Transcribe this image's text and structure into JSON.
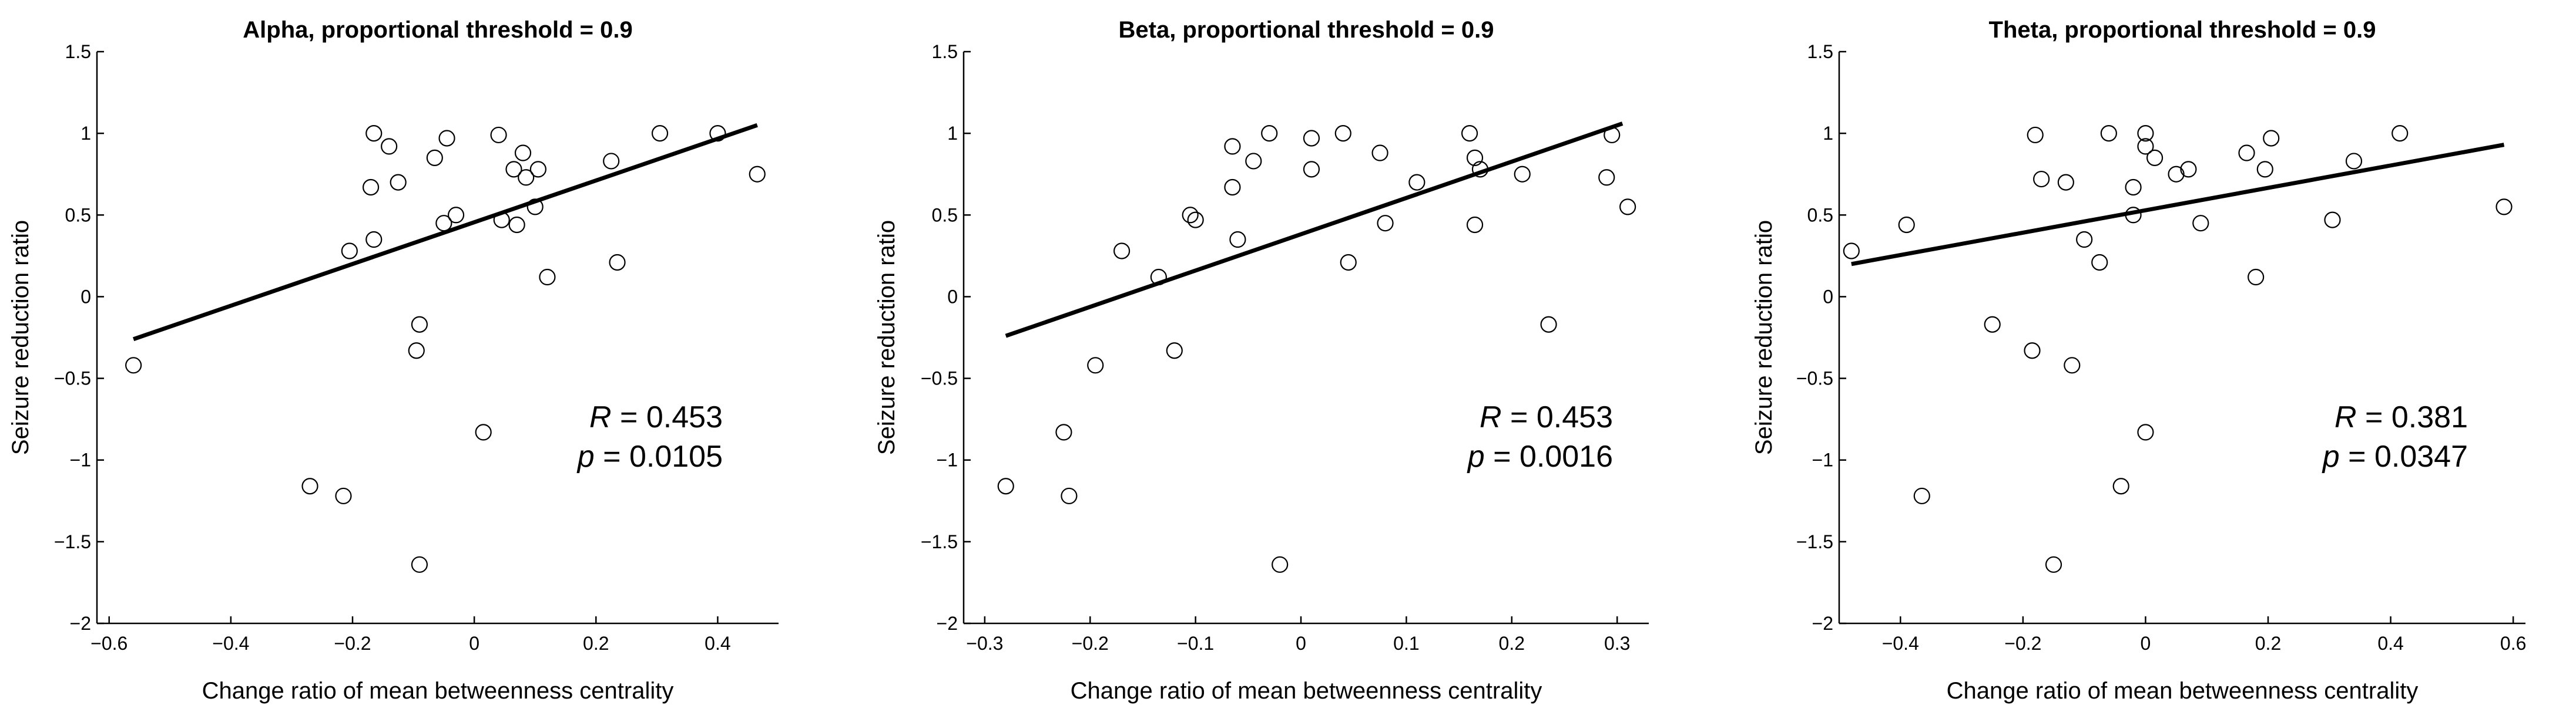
{
  "chart_data": [
    {
      "type": "scatter",
      "title": "Alpha, proportional threshold = 0.9",
      "xlabel": "Change ratio of mean betweenness centrality",
      "ylabel": "Seizure reduction ratio",
      "xlim": [
        -0.62,
        0.5
      ],
      "ylim": [
        -2,
        1.5
      ],
      "xticks": [
        -0.6,
        -0.4,
        -0.2,
        0,
        0.2,
        0.4
      ],
      "xtick_labels": [
        "−0.6",
        "−0.4",
        "−0.2",
        "0",
        "0.2",
        "0.4"
      ],
      "yticks": [
        -2,
        -1.5,
        -1,
        -0.5,
        0,
        0.5,
        1,
        1.5
      ],
      "ytick_labels": [
        "−2",
        "−1.5",
        "−1",
        "−0.5",
        "0",
        "0.5",
        "1",
        "1.5"
      ],
      "points": [
        [
          -0.56,
          -0.42
        ],
        [
          -0.27,
          -1.16
        ],
        [
          -0.215,
          -1.22
        ],
        [
          -0.205,
          0.28
        ],
        [
          -0.17,
          0.67
        ],
        [
          -0.165,
          1.0
        ],
        [
          -0.165,
          0.35
        ],
        [
          -0.14,
          0.92
        ],
        [
          -0.125,
          0.7
        ],
        [
          -0.095,
          -0.33
        ],
        [
          -0.09,
          -0.17
        ],
        [
          -0.09,
          -1.64
        ],
        [
          -0.065,
          0.85
        ],
        [
          -0.05,
          0.45
        ],
        [
          -0.045,
          0.97
        ],
        [
          -0.03,
          0.5
        ],
        [
          0.015,
          -0.83
        ],
        [
          0.04,
          0.99
        ],
        [
          0.045,
          0.47
        ],
        [
          0.065,
          0.78
        ],
        [
          0.07,
          0.44
        ],
        [
          0.08,
          0.88
        ],
        [
          0.085,
          0.73
        ],
        [
          0.1,
          0.55
        ],
        [
          0.105,
          0.78
        ],
        [
          0.12,
          0.12
        ],
        [
          0.225,
          0.83
        ],
        [
          0.235,
          0.21
        ],
        [
          0.305,
          1.0
        ],
        [
          0.4,
          1.0
        ],
        [
          0.465,
          0.75
        ]
      ],
      "fit_line": {
        "x": [
          -0.56,
          0.465
        ],
        "y": [
          -0.26,
          1.05
        ]
      },
      "stats": {
        "r_label": "R",
        "r_value": " = 0.453",
        "p_label": "p",
        "p_value": " = 0.0105"
      }
    },
    {
      "type": "scatter",
      "title": "Beta, proportional threshold = 0.9",
      "xlabel": "Change ratio of mean betweenness centrality",
      "ylabel": "Seizure reduction ratio",
      "xlim": [
        -0.32,
        0.33
      ],
      "ylim": [
        -2,
        1.5
      ],
      "xticks": [
        -0.3,
        -0.2,
        -0.1,
        0,
        0.1,
        0.2,
        0.3
      ],
      "xtick_labels": [
        "−0.3",
        "−0.2",
        "−0.1",
        "0",
        "0.1",
        "0.2",
        "0.3"
      ],
      "yticks": [
        -2,
        -1.5,
        -1,
        -0.5,
        0,
        0.5,
        1,
        1.5
      ],
      "ytick_labels": [
        "−2",
        "−1.5",
        "−1",
        "−0.5",
        "0",
        "0.5",
        "1",
        "1.5"
      ],
      "points": [
        [
          -0.28,
          -1.16
        ],
        [
          -0.225,
          -0.83
        ],
        [
          -0.22,
          -1.22
        ],
        [
          -0.195,
          -0.42
        ],
        [
          -0.17,
          0.28
        ],
        [
          -0.135,
          0.12
        ],
        [
          -0.12,
          -0.33
        ],
        [
          -0.105,
          0.5
        ],
        [
          -0.1,
          0.47
        ],
        [
          -0.065,
          0.92
        ],
        [
          -0.065,
          0.67
        ],
        [
          -0.06,
          0.35
        ],
        [
          -0.045,
          0.83
        ],
        [
          -0.03,
          1.0
        ],
        [
          -0.02,
          -1.64
        ],
        [
          0.01,
          0.97
        ],
        [
          0.01,
          0.78
        ],
        [
          0.04,
          1.0
        ],
        [
          0.045,
          0.21
        ],
        [
          0.075,
          0.88
        ],
        [
          0.08,
          0.45
        ],
        [
          0.11,
          0.7
        ],
        [
          0.16,
          1.0
        ],
        [
          0.165,
          0.85
        ],
        [
          0.165,
          0.44
        ],
        [
          0.17,
          0.78
        ],
        [
          0.21,
          0.75
        ],
        [
          0.235,
          -0.17
        ],
        [
          0.29,
          0.73
        ],
        [
          0.295,
          0.99
        ],
        [
          0.31,
          0.55
        ]
      ],
      "fit_line": {
        "x": [
          -0.28,
          0.305
        ],
        "y": [
          -0.24,
          1.06
        ]
      },
      "stats": {
        "r_label": "R",
        "r_value": " = 0.453",
        "p_label": "p",
        "p_value": " = 0.0016"
      }
    },
    {
      "type": "scatter",
      "title": "Theta, proportional threshold = 0.9",
      "xlabel": "Change ratio of mean betweenness centrality",
      "ylabel": "Seizure reduction ratio",
      "xlim": [
        -0.5,
        0.62
      ],
      "ylim": [
        -2,
        1.5
      ],
      "xticks": [
        -0.4,
        -0.2,
        0,
        0.2,
        0.4,
        0.6
      ],
      "xtick_labels": [
        "−0.4",
        "−0.2",
        "0",
        "0.2",
        "0.4",
        "0.6"
      ],
      "yticks": [
        -2,
        -1.5,
        -1,
        -0.5,
        0,
        0.5,
        1,
        1.5
      ],
      "ytick_labels": [
        "−2",
        "−1.5",
        "−1",
        "−0.5",
        "0",
        "0.5",
        "1",
        "1.5"
      ],
      "points": [
        [
          -0.48,
          0.28
        ],
        [
          -0.39,
          0.44
        ],
        [
          -0.365,
          -1.22
        ],
        [
          -0.25,
          -0.17
        ],
        [
          -0.185,
          -0.33
        ],
        [
          -0.18,
          0.99
        ],
        [
          -0.17,
          0.72
        ],
        [
          -0.15,
          -1.64
        ],
        [
          -0.13,
          0.7
        ],
        [
          -0.12,
          -0.42
        ],
        [
          -0.1,
          0.35
        ],
        [
          -0.075,
          0.21
        ],
        [
          -0.06,
          1.0
        ],
        [
          -0.04,
          -1.16
        ],
        [
          -0.02,
          0.67
        ],
        [
          -0.02,
          0.5
        ],
        [
          0.0,
          1.0
        ],
        [
          0.0,
          0.92
        ],
        [
          0.0,
          -0.83
        ],
        [
          0.015,
          0.85
        ],
        [
          0.05,
          0.75
        ],
        [
          0.07,
          0.78
        ],
        [
          0.09,
          0.45
        ],
        [
          0.165,
          0.88
        ],
        [
          0.18,
          0.12
        ],
        [
          0.195,
          0.78
        ],
        [
          0.205,
          0.97
        ],
        [
          0.305,
          0.47
        ],
        [
          0.34,
          0.83
        ],
        [
          0.415,
          1.0
        ],
        [
          0.585,
          0.55
        ]
      ],
      "fit_line": {
        "x": [
          -0.48,
          0.585
        ],
        "y": [
          0.2,
          0.93
        ]
      },
      "stats": {
        "r_label": "R",
        "r_value": " = 0.381",
        "p_label": "p",
        "p_value": " = 0.0347"
      }
    }
  ]
}
